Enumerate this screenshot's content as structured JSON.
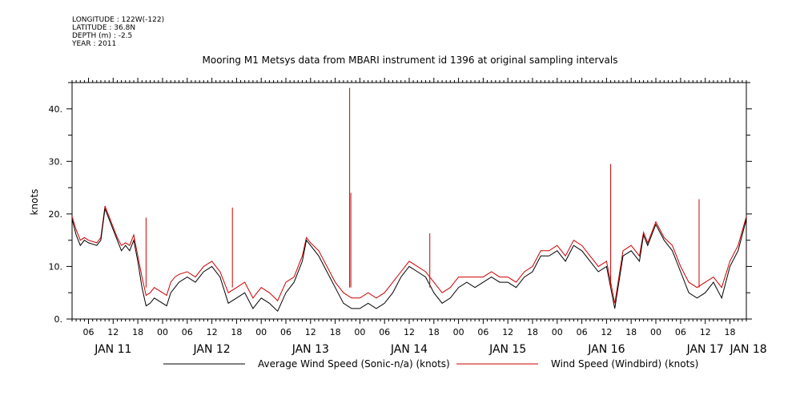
{
  "header": {
    "lines": [
      "LONGITUDE : 122W(-122)",
      "LATITUDE : 36.8N",
      "DEPTH (m) : -2.5",
      "YEAR : 2011"
    ]
  },
  "chart_data": {
    "type": "line",
    "title": "Mooring M1 Metsys data from MBARI instrument id 1396 at original sampling intervals",
    "ylabel": "knots",
    "xlabel": "",
    "ylim": [
      0,
      45
    ],
    "yticks": [
      0,
      10,
      20,
      30,
      40
    ],
    "ytick_labels": [
      "0.",
      "10.",
      "20.",
      "30.",
      "40."
    ],
    "x_unit": "hours since JAN 11 00:00 (2011)",
    "xlim": [
      2,
      166
    ],
    "hour_ticks": [
      6,
      12,
      18,
      0
    ],
    "hour_tick_labels": [
      "06",
      "12",
      "18",
      "00"
    ],
    "day_labels": [
      "JAN 11",
      "JAN 12",
      "JAN 13",
      "JAN 14",
      "JAN 15",
      "JAN 16",
      "JAN 17",
      "JAN 18"
    ],
    "grid": false,
    "legend_placement": "bottom",
    "series": [
      {
        "name": "Average Wind Speed (Sonic-n/a) (knots)",
        "color": "#000000",
        "x": [
          2,
          3,
          4,
          5,
          6,
          8,
          9,
          10,
          12,
          13,
          14,
          15,
          16,
          17,
          18,
          19,
          20,
          21,
          22,
          24,
          25,
          26,
          27,
          28,
          30,
          32,
          34,
          36,
          38,
          40,
          42,
          44,
          46,
          47,
          48,
          50,
          52,
          54,
          56,
          58,
          59,
          60,
          62,
          64,
          66,
          68,
          70,
          72,
          74,
          76,
          78,
          80,
          82,
          84,
          86,
          88,
          90,
          92,
          94,
          96,
          98,
          100,
          102,
          104,
          106,
          108,
          110,
          112,
          114,
          116,
          118,
          120,
          122,
          124,
          126,
          128,
          130,
          132,
          134,
          136,
          138,
          140,
          141,
          142,
          144,
          146,
          148,
          150,
          152,
          154,
          156,
          158,
          160,
          162,
          164,
          166
        ],
        "y": [
          19,
          16,
          14,
          15,
          14.5,
          14,
          15,
          21,
          17,
          15,
          13,
          14,
          13,
          15,
          11,
          6,
          2.5,
          3,
          4,
          3,
          2.5,
          5,
          6,
          7,
          8,
          7,
          9,
          10,
          8,
          3,
          4,
          5,
          2,
          3,
          4,
          3,
          1.5,
          5,
          7,
          11,
          15,
          14,
          12,
          9,
          6,
          3,
          2,
          2,
          3,
          2,
          3,
          5,
          8,
          10,
          9,
          8,
          5,
          3,
          4,
          6,
          7,
          6,
          7,
          8,
          7,
          7,
          6,
          8,
          9,
          12,
          12,
          13,
          11,
          14,
          13,
          11,
          9,
          10,
          2,
          12,
          13,
          11,
          16,
          14,
          18,
          15,
          13,
          9,
          5,
          4,
          5,
          7,
          4,
          10,
          13,
          19
        ]
      },
      {
        "name": "Wind Speed (Windbird) (knots)",
        "color": "#cc0000",
        "x": [
          2,
          3,
          4,
          5,
          6,
          8,
          9,
          10,
          12,
          13,
          14,
          15,
          16,
          17,
          18,
          19,
          20,
          21,
          22,
          24,
          25,
          26,
          27,
          28,
          30,
          32,
          34,
          36,
          38,
          40,
          42,
          44,
          46,
          47,
          48,
          50,
          52,
          54,
          56,
          58,
          59,
          60,
          62,
          64,
          66,
          68,
          70,
          72,
          74,
          76,
          78,
          80,
          82,
          84,
          86,
          88,
          90,
          92,
          94,
          96,
          98,
          100,
          102,
          104,
          106,
          108,
          110,
          112,
          114,
          116,
          118,
          120,
          122,
          124,
          126,
          128,
          130,
          132,
          134,
          136,
          138,
          140,
          141,
          142,
          144,
          146,
          148,
          150,
          152,
          154,
          156,
          158,
          160,
          162,
          164,
          166
        ],
        "y": [
          19.5,
          17,
          15,
          15.5,
          15,
          14.5,
          15.5,
          21.5,
          17.5,
          15.5,
          14,
          14.5,
          14,
          16,
          12,
          8,
          4.5,
          5,
          6,
          5,
          4.5,
          7,
          8,
          8.5,
          9,
          8,
          10,
          11,
          9,
          5,
          6,
          7,
          4,
          5,
          6,
          5,
          3.5,
          7,
          8,
          12,
          15.5,
          14.5,
          13,
          10,
          7,
          5,
          4,
          4,
          5,
          4,
          5,
          7,
          9,
          11,
          10,
          9,
          7,
          5,
          6,
          8,
          8,
          8,
          8,
          9,
          8,
          8,
          7,
          9,
          10,
          13,
          13,
          14,
          12,
          15,
          14,
          12,
          10,
          11,
          3,
          13,
          14,
          12,
          16.5,
          14.5,
          18.5,
          15.5,
          14,
          10,
          7,
          6,
          7,
          8,
          6,
          11,
          14,
          19.5
        ]
      }
    ],
    "spikes": [
      {
        "x": 20,
        "y": 19.3
      },
      {
        "x": 41,
        "y": 21.2
      },
      {
        "x": 69.5,
        "y": 44
      },
      {
        "x": 69.8,
        "y": 24
      },
      {
        "x": 89,
        "y": 16.3
      },
      {
        "x": 133,
        "y": 29.5
      },
      {
        "x": 154.5,
        "y": 22.8
      }
    ]
  }
}
